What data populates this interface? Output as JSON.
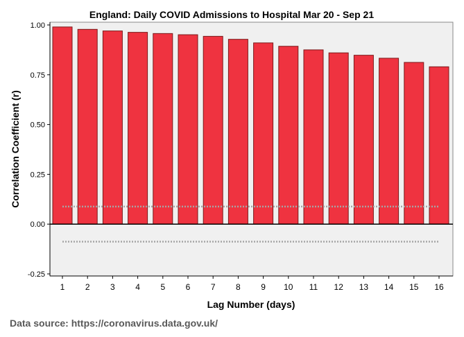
{
  "chart_data": {
    "type": "bar",
    "title": "England: Daily COVID Admissions to Hospital Mar 20 - Sep 21",
    "xlabel": "Lag Number (days)",
    "ylabel": "Correlation Coefficient (r)",
    "categories": [
      "1",
      "2",
      "3",
      "4",
      "5",
      "6",
      "7",
      "8",
      "9",
      "10",
      "11",
      "12",
      "13",
      "14",
      "15",
      "16"
    ],
    "series": [
      {
        "name": "Correlation Coefficient",
        "values": [
          0.99,
          0.978,
          0.97,
          0.963,
          0.957,
          0.951,
          0.943,
          0.928,
          0.91,
          0.893,
          0.875,
          0.86,
          0.848,
          0.833,
          0.812,
          0.79
        ]
      }
    ],
    "ylim": [
      -0.25,
      1.0
    ],
    "yticks": [
      -0.25,
      0.0,
      0.25,
      0.5,
      0.75,
      1.0
    ],
    "ytick_labels": [
      "-0.25",
      "0.00",
      "0.25",
      "0.50",
      "0.75",
      "1.00"
    ],
    "confidence_limits": {
      "upper": 0.088,
      "lower": -0.088
    },
    "grid": false,
    "colors": {
      "bar_fill": "#ef3340",
      "bar_stroke": "#7a1a1a",
      "plot_background": "#f0f0f0",
      "confidence_line": "#a6a6a6",
      "zero_line": "#000000"
    }
  },
  "source": {
    "text": "Data source: https://coronavirus.data.gov.uk/"
  }
}
